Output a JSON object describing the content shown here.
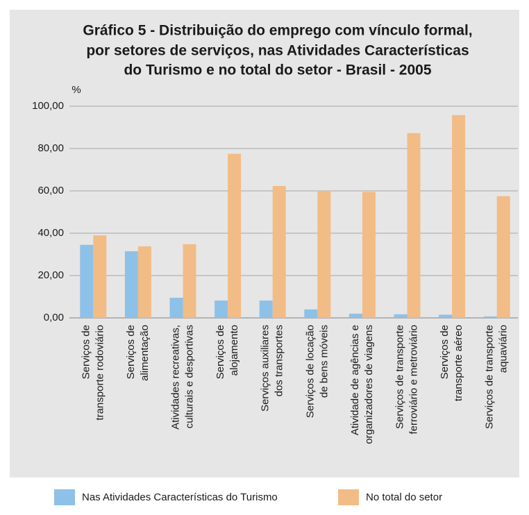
{
  "chart_data": {
    "type": "bar",
    "title": [
      "Gráfico 5 - Distribuição do emprego com vínculo formal,",
      "por setores de serviços, nas Atividades Características",
      "do Turismo e no total do setor - Brasil - 2005"
    ],
    "y_label": "%",
    "categories": [
      [
        "Serviços de",
        "transporte rodoviário"
      ],
      [
        "Serviços de",
        "alimentação"
      ],
      [
        "Atividades recreativas,",
        "culturais e desportivas"
      ],
      [
        "Serviços de",
        "alojamento"
      ],
      [
        "Serviços auxiliares",
        "dos transportes"
      ],
      [
        "Serviços de locação",
        "de bens móveis"
      ],
      [
        "Atividade de agências e",
        "organizadores de viagens"
      ],
      [
        "Serviços de transporte",
        "ferroviário e metroviário"
      ],
      [
        "Serviços de",
        "transporte aéreo"
      ],
      [
        "Serviços de transporte",
        "aquaviário"
      ]
    ],
    "series": [
      {
        "name": "Nas Atividades Características do Turismo",
        "color": "#8ec1e8",
        "values": [
          34.5,
          31.5,
          9.5,
          8.2,
          8.2,
          4.0,
          2.0,
          1.7,
          1.5,
          0.7
        ]
      },
      {
        "name": "No total do setor",
        "color": "#f2bc87",
        "values": [
          39.0,
          33.8,
          34.8,
          77.5,
          62.3,
          60.0,
          59.5,
          87.3,
          95.8,
          57.5
        ]
      }
    ],
    "ylim": [
      0,
      100
    ],
    "yticks": [
      {
        "value": 0,
        "label": "0,00"
      },
      {
        "value": 20,
        "label": "20,00"
      },
      {
        "value": 40,
        "label": "40,00"
      },
      {
        "value": 60,
        "label": "60,00"
      },
      {
        "value": 80,
        "label": "80,00"
      },
      {
        "value": 100,
        "label": "100,00"
      }
    ],
    "grid": true
  }
}
